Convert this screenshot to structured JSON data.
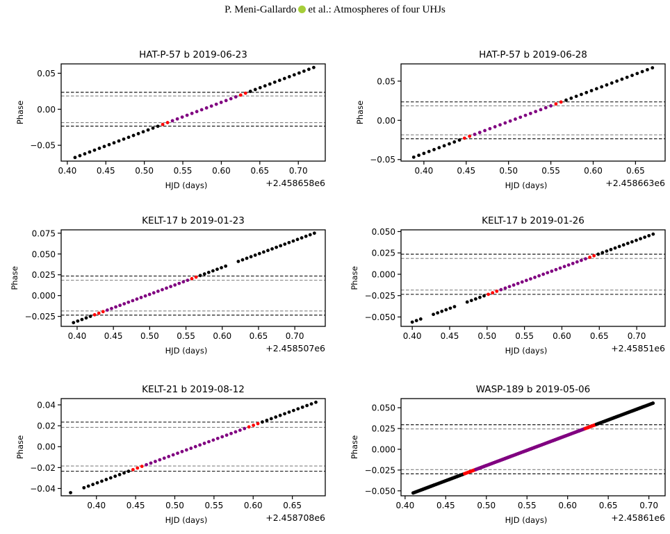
{
  "header": {
    "author": "P. Meni-Gallardo",
    "rest": "et al.: Atmospheres of four UHJs",
    "orcid_icon_color": "#a6ce39"
  },
  "colors": {
    "out_of_transit": "#000000",
    "ingress_egress": "#ff0000",
    "in_transit": "#800080",
    "outer_limit": "#000000",
    "inner_limit": "#808080"
  },
  "chart_data": [
    {
      "type": "scatter",
      "title": "HAT-P-57 b 2019-06-23",
      "xlabel": "HJD (days)",
      "ylabel": "Phase",
      "x_offset_label": "+2.458658e6",
      "xlim": [
        0.392,
        0.735
      ],
      "ylim": [
        -0.072,
        0.063
      ],
      "xticks": [
        0.4,
        0.45,
        0.5,
        0.55,
        0.6,
        0.65,
        0.7
      ],
      "xtick_labels": [
        "0.40",
        "0.45",
        "0.50",
        "0.55",
        "0.60",
        "0.65",
        "0.70"
      ],
      "yticks": [
        -0.05,
        0.0,
        0.05
      ],
      "ytick_labels": [
        "−0.05",
        "0.00",
        "0.05"
      ],
      "hlines_outer": [
        0.0235,
        -0.0235
      ],
      "hlines_inner": [
        0.0185,
        -0.0185
      ],
      "x_start": 0.41,
      "x_end": 0.72,
      "y_start": -0.067,
      "y_end": 0.058,
      "n_points": 50,
      "gaps": []
    },
    {
      "type": "scatter",
      "title": "HAT-P-57 b 2019-06-28",
      "xlabel": "HJD (days)",
      "ylabel": "Phase",
      "x_offset_label": "+2.458663e6",
      "xlim": [
        0.373,
        0.685
      ],
      "ylim": [
        -0.052,
        0.072
      ],
      "xticks": [
        0.4,
        0.45,
        0.5,
        0.55,
        0.6,
        0.65
      ],
      "xtick_labels": [
        "0.40",
        "0.45",
        "0.50",
        "0.55",
        "0.60",
        "0.65"
      ],
      "yticks": [
        -0.05,
        0.0,
        0.05
      ],
      "ytick_labels": [
        "−0.05",
        "0.00",
        "0.05"
      ],
      "hlines_outer": [
        0.0235,
        -0.0235
      ],
      "hlines_inner": [
        0.0185,
        -0.0185
      ],
      "x_start": 0.388,
      "x_end": 0.67,
      "y_start": -0.047,
      "y_end": 0.067,
      "n_points": 48,
      "gaps": []
    },
    {
      "type": "scatter",
      "title": "KELT-17 b 2019-01-23",
      "xlabel": "HJD (days)",
      "ylabel": "Phase",
      "x_offset_label": "+2.458507e6",
      "xlim": [
        0.378,
        0.742
      ],
      "ylim": [
        -0.037,
        0.079
      ],
      "xticks": [
        0.4,
        0.45,
        0.5,
        0.55,
        0.6,
        0.65,
        0.7
      ],
      "xtick_labels": [
        "0.40",
        "0.45",
        "0.50",
        "0.55",
        "0.60",
        "0.65",
        "0.70"
      ],
      "yticks": [
        -0.025,
        0.0,
        0.025,
        0.05,
        0.075
      ],
      "ytick_labels": [
        "−0.025",
        "0.000",
        "0.025",
        "0.050",
        "0.075"
      ],
      "hlines_outer": [
        0.0235,
        -0.0235
      ],
      "hlines_inner": [
        0.0185,
        -0.0185
      ],
      "x_start": 0.395,
      "x_end": 0.727,
      "y_start": -0.0325,
      "y_end": 0.075,
      "n_points": 58,
      "gaps": [
        [
          0.609,
          0.621
        ]
      ]
    },
    {
      "type": "scatter",
      "title": "KELT-17 b 2019-01-26",
      "xlabel": "HJD (days)",
      "ylabel": "Phase",
      "x_offset_label": "+2.45851e6",
      "xlim": [
        0.385,
        0.738
      ],
      "ylim": [
        -0.061,
        0.052
      ],
      "xticks": [
        0.4,
        0.45,
        0.5,
        0.55,
        0.6,
        0.65,
        0.7
      ],
      "xtick_labels": [
        "0.40",
        "0.45",
        "0.50",
        "0.55",
        "0.60",
        "0.65",
        "0.70"
      ],
      "yticks": [
        -0.05,
        -0.025,
        0.0,
        0.025,
        0.05
      ],
      "ytick_labels": [
        "−0.050",
        "−0.025",
        "0.000",
        "0.025",
        "0.050"
      ],
      "hlines_outer": [
        0.0235,
        -0.0235
      ],
      "hlines_inner": [
        0.0185,
        -0.0185
      ],
      "x_start": 0.4,
      "x_end": 0.722,
      "y_start": -0.056,
      "y_end": 0.047,
      "n_points": 58,
      "gaps": [
        [
          0.416,
          0.428
        ],
        [
          0.458,
          0.473
        ]
      ]
    },
    {
      "type": "scatter",
      "title": "KELT-21 b 2019-08-12",
      "xlabel": "HJD (days)",
      "ylabel": "Phase",
      "x_offset_label": "+2.458708e6",
      "xlim": [
        0.355,
        0.692
      ],
      "ylim": [
        -0.047,
        0.046
      ],
      "xticks": [
        0.4,
        0.45,
        0.5,
        0.55,
        0.6,
        0.65
      ],
      "xtick_labels": [
        "0.40",
        "0.45",
        "0.50",
        "0.55",
        "0.60",
        "0.65"
      ],
      "yticks": [
        -0.04,
        -0.02,
        0.0,
        0.02,
        0.04
      ],
      "ytick_labels": [
        "−0.04",
        "−0.02",
        "0.00",
        "0.02",
        "0.04"
      ],
      "hlines_outer": [
        0.0235,
        -0.0235
      ],
      "hlines_inner": [
        0.0185,
        -0.0185
      ],
      "x_start": 0.367,
      "x_end": 0.68,
      "y_start": -0.044,
      "y_end": 0.0425,
      "n_points": 56,
      "gaps": [
        [
          0.372,
          0.38
        ]
      ]
    },
    {
      "type": "scatter",
      "title": "WASP-189 b 2019-05-06",
      "xlabel": "HJD (days)",
      "ylabel": "Phase",
      "x_offset_label": "+2.45861e6",
      "xlim": [
        0.395,
        0.72
      ],
      "ylim": [
        -0.056,
        0.061
      ],
      "xticks": [
        0.4,
        0.45,
        0.5,
        0.55,
        0.6,
        0.65,
        0.7
      ],
      "xtick_labels": [
        "0.40",
        "0.45",
        "0.50",
        "0.55",
        "0.60",
        "0.65",
        "0.70"
      ],
      "yticks": [
        -0.05,
        -0.025,
        0.0,
        0.025,
        0.05
      ],
      "ytick_labels": [
        "−0.050",
        "−0.025",
        "0.000",
        "0.025",
        "0.050"
      ],
      "hlines_outer": [
        0.0295,
        -0.0295
      ],
      "hlines_inner": [
        0.0245,
        -0.0245
      ],
      "x_start": 0.41,
      "x_end": 0.705,
      "y_start": -0.0525,
      "y_end": 0.0555,
      "n_points": 150,
      "gaps": []
    }
  ]
}
